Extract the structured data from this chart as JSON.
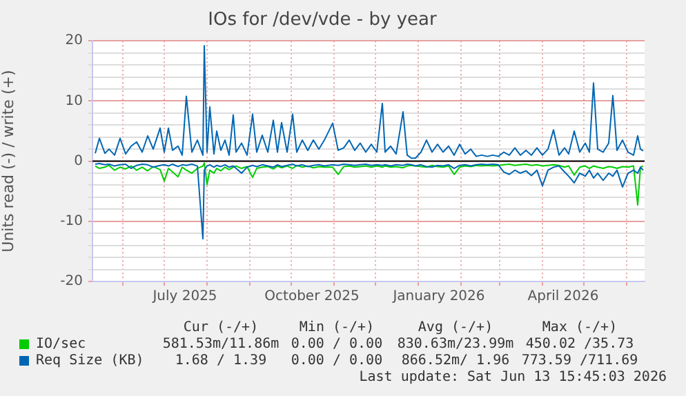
{
  "chart_data": {
    "type": "line",
    "title": "IOs for /dev/vde - by year",
    "ylabel": "Units read (-) / write (+)",
    "x": [
      "2025-05-12",
      "2025-05-15",
      "2025-05-19",
      "2025-05-22",
      "2025-05-26",
      "2025-05-30",
      "2025-06-03",
      "2025-06-07",
      "2025-06-11",
      "2025-06-15",
      "2025-06-19",
      "2025-06-23",
      "2025-06-28",
      "2025-07-01",
      "2025-07-04",
      "2025-07-07",
      "2025-07-11",
      "2025-07-14",
      "2025-07-17",
      "2025-07-21",
      "2025-07-25",
      "2025-07-29",
      "2025-07-30",
      "2025-08-01",
      "2025-08-03",
      "2025-08-06",
      "2025-08-08",
      "2025-08-11",
      "2025-08-14",
      "2025-08-17",
      "2025-08-20",
      "2025-08-22",
      "2025-08-26",
      "2025-08-30",
      "2025-09-03",
      "2025-09-06",
      "2025-09-10",
      "2025-09-14",
      "2025-09-18",
      "2025-09-21",
      "2025-09-24",
      "2025-09-28",
      "2025-10-02",
      "2025-10-05",
      "2025-10-09",
      "2025-10-13",
      "2025-10-17",
      "2025-10-21",
      "2025-10-25",
      "2025-10-31",
      "2025-11-04",
      "2025-11-08",
      "2025-11-12",
      "2025-11-16",
      "2025-11-20",
      "2025-11-24",
      "2025-11-28",
      "2025-12-02",
      "2025-12-06",
      "2025-12-08",
      "2025-12-12",
      "2025-12-16",
      "2025-12-21",
      "2025-12-24",
      "2025-12-27",
      "2025-12-30",
      "2026-01-03",
      "2026-01-07",
      "2026-01-11",
      "2026-01-15",
      "2026-01-19",
      "2026-01-23",
      "2026-01-27",
      "2026-01-31",
      "2026-02-04",
      "2026-02-08",
      "2026-02-12",
      "2026-02-16",
      "2026-02-20",
      "2026-02-24",
      "2026-02-28",
      "2026-03-04",
      "2026-03-08",
      "2026-03-12",
      "2026-03-16",
      "2026-03-20",
      "2026-03-24",
      "2026-03-28",
      "2026-04-01",
      "2026-04-05",
      "2026-04-09",
      "2026-04-13",
      "2026-04-17",
      "2026-04-20",
      "2026-04-24",
      "2026-04-28",
      "2026-05-02",
      "2026-05-05",
      "2026-05-08",
      "2026-05-11",
      "2026-05-15",
      "2026-05-19",
      "2026-05-22",
      "2026-05-25",
      "2026-05-29",
      "2026-06-02",
      "2026-06-06",
      "2026-06-09",
      "2026-06-11",
      "2026-06-13"
    ],
    "series": [
      {
        "name": "IO/sec",
        "color": "#00cc00",
        "values": [
          -0.8,
          -1.2,
          -1.0,
          -0.7,
          -1.5,
          -1.0,
          -1.3,
          -0.8,
          -1.5,
          -1.0,
          -1.6,
          -0.9,
          -1.4,
          -3.3,
          -1.2,
          -1.8,
          -2.6,
          -1.0,
          -1.5,
          -2.0,
          -1.2,
          -0.8,
          -0.3,
          -3.9,
          -1.5,
          -2.0,
          -1.2,
          -1.6,
          -1.0,
          -1.4,
          -1.0,
          -0.8,
          -1.2,
          -0.9,
          -2.7,
          -1.2,
          -1.0,
          -0.9,
          -1.3,
          -0.8,
          -1.1,
          -0.8,
          -1.2,
          -0.7,
          -1.0,
          -0.8,
          -1.1,
          -0.9,
          -1.0,
          -1.0,
          -2.2,
          -0.9,
          -0.8,
          -1.0,
          -0.9,
          -0.8,
          -1.0,
          -0.8,
          -1.0,
          -0.8,
          -1.0,
          -0.9,
          -1.1,
          -0.8,
          -0.7,
          -0.8,
          -0.9,
          -1.0,
          -0.7,
          -0.9,
          -1.0,
          -0.8,
          -2.2,
          -1.0,
          -0.8,
          -0.9,
          -0.7,
          -0.8,
          -0.7,
          -0.8,
          -0.7,
          -0.6,
          -0.5,
          -0.7,
          -0.6,
          -0.5,
          -0.7,
          -0.6,
          -0.8,
          -0.7,
          -0.6,
          -0.7,
          -1.0,
          -0.8,
          -2.3,
          -1.0,
          -0.8,
          -1.2,
          -0.8,
          -1.0,
          -1.2,
          -0.9,
          -1.0,
          -1.2,
          -0.9,
          -1.0,
          -0.8,
          -7.3,
          -1.0,
          -0.8
        ]
      },
      {
        "name": "Req Size (KB)",
        "color": "#0066b3",
        "values": [
          1.3,
          3.8,
          1.3,
          2.0,
          1.0,
          3.8,
          1.2,
          2.5,
          3.2,
          1.5,
          4.2,
          2.0,
          5.5,
          1.5,
          5.5,
          1.8,
          2.5,
          1.0,
          10.8,
          1.5,
          3.5,
          1.0,
          19.2,
          1.5,
          9.0,
          1.2,
          5.0,
          1.8,
          3.5,
          1.0,
          7.7,
          1.5,
          3.0,
          1.0,
          7.8,
          1.5,
          4.3,
          1.5,
          6.8,
          1.5,
          6.4,
          1.5,
          7.8,
          1.5,
          3.5,
          1.8,
          3.5,
          2.0,
          3.5,
          6.3,
          1.8,
          2.2,
          3.5,
          1.8,
          3.0,
          1.5,
          2.8,
          1.5,
          9.6,
          1.5,
          2.5,
          1.2,
          8.2,
          1.0,
          0.5,
          0.5,
          1.5,
          3.5,
          1.5,
          2.8,
          1.5,
          2.5,
          1.0,
          2.8,
          1.2,
          2.0,
          0.8,
          1.0,
          0.8,
          1.0,
          0.8,
          1.5,
          1.0,
          2.2,
          1.0,
          1.8,
          1.0,
          2.2,
          1.0,
          2.0,
          5.2,
          1.0,
          2.2,
          1.2,
          5.0,
          1.5,
          3.0,
          1.5,
          13.0,
          2.0,
          1.5,
          3.0,
          10.9,
          1.8,
          3.5,
          1.5,
          1.0,
          4.2,
          2.0,
          1.7
        ]
      },
      {
        "color": "#0066b3",
        "values": [
          -0.5,
          -0.4,
          -0.6,
          -0.5,
          -0.8,
          -0.6,
          -0.5,
          -1.2,
          -0.7,
          -0.5,
          -0.6,
          -1.0,
          -0.7,
          -0.6,
          -0.8,
          -0.5,
          -0.9,
          -0.6,
          -0.7,
          -0.5,
          -0.8,
          -12.9,
          -1.5,
          -0.8,
          -0.6,
          -1.0,
          -0.7,
          -0.9,
          -0.6,
          -1.0,
          -0.8,
          -1.2,
          -2.0,
          -1.0,
          -0.7,
          -0.9,
          -0.6,
          -0.8,
          -1.0,
          -0.6,
          -0.9,
          -0.7,
          -0.5,
          -0.8,
          -0.6,
          -0.9,
          -0.7,
          -0.6,
          -0.8,
          -0.6,
          -0.7,
          -0.5,
          -0.6,
          -0.7,
          -0.6,
          -0.5,
          -0.7,
          -0.6,
          -0.7,
          -0.6,
          -0.8,
          -0.6,
          -0.7,
          -0.5,
          -0.6,
          -0.8,
          -0.6,
          -0.9,
          -1.0,
          -0.7,
          -0.8,
          -0.6,
          -1.2,
          -0.7,
          -0.6,
          -0.8,
          -0.6,
          -0.5,
          -0.6,
          -0.5,
          -0.6,
          -1.8,
          -2.2,
          -1.5,
          -2.0,
          -1.6,
          -2.4,
          -1.5,
          -4.1,
          -1.5,
          -1.0,
          -0.8,
          -1.8,
          -2.5,
          -3.6,
          -2.0,
          -2.5,
          -1.5,
          -2.8,
          -2.0,
          -3.2,
          -2.0,
          -2.5,
          -1.5,
          -4.3,
          -2.0,
          -1.5,
          -2.0,
          -1.0,
          -1.5
        ]
      }
    ],
    "xlim": [
      "2025-05-10",
      "2026-06-14"
    ],
    "xticks": [
      {
        "value": "2025-06-01",
        "label": null
      },
      {
        "value": "2025-07-01",
        "label": null
      },
      {
        "value": "2025-07-16",
        "label": "July 2025"
      },
      {
        "value": "2025-08-01",
        "label": null
      },
      {
        "value": "2025-09-01",
        "label": null
      },
      {
        "value": "2025-10-01",
        "label": null
      },
      {
        "value": "2025-10-16",
        "label": "October 2025"
      },
      {
        "value": "2025-11-01",
        "label": null
      },
      {
        "value": "2025-12-01",
        "label": null
      },
      {
        "value": "2026-01-01",
        "label": null
      },
      {
        "value": "2026-01-16",
        "label": "January 2026"
      },
      {
        "value": "2026-02-01",
        "label": null
      },
      {
        "value": "2026-03-01",
        "label": null
      },
      {
        "value": "2026-04-01",
        "label": null
      },
      {
        "value": "2026-04-16",
        "label": "April 2026"
      },
      {
        "value": "2026-05-01",
        "label": null
      },
      {
        "value": "2026-06-01",
        "label": null
      }
    ],
    "ylim": [
      -20,
      20
    ],
    "yticks": [
      -20,
      {
        "value": -18,
        "label": null
      },
      {
        "value": -16,
        "label": null
      },
      {
        "value": -14,
        "label": null
      },
      {
        "value": -12,
        "label": null
      },
      -10,
      {
        "value": -8,
        "label": null
      },
      {
        "value": -6,
        "label": null
      },
      {
        "value": -4,
        "label": null
      },
      {
        "value": -2,
        "label": null
      },
      0,
      {
        "value": 2,
        "label": null
      },
      {
        "value": 4,
        "label": null
      },
      {
        "value": 6,
        "label": null
      },
      {
        "value": 8,
        "label": null
      },
      10,
      {
        "value": 12,
        "label": null
      },
      {
        "value": 14,
        "label": null
      },
      {
        "value": 16,
        "label": null
      },
      {
        "value": 18,
        "label": null
      },
      20
    ],
    "ref_lines": [
      {
        "axis": "y",
        "value": 0,
        "color": "#000000"
      }
    ],
    "grid": true,
    "legend": "bottom",
    "marker": "none",
    "line_style": "solid",
    "annotations": [
      "Cur (-/+)",
      "Min (-/+)",
      "Avg (-/+)",
      "Max (-/+)",
      "581.53m/11.86m",
      "0.00 / 0.00",
      "830.63m/23.99m",
      "450.02 /35.73",
      "1.68 / 1.39",
      "0.00 / 0.00",
      "866.52m/ 1.96",
      "773.59 /711.69",
      "Last update: Sat Jun 13 15:45:03 2026"
    ]
  }
}
